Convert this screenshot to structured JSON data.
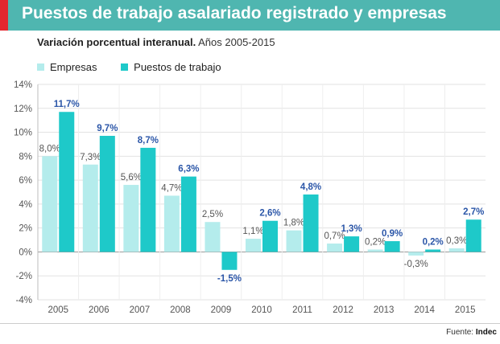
{
  "header": {
    "title": "Puestos de trabajo asalariado registrado y empresas"
  },
  "subtitle": {
    "bold": "Variación porcentual interanual.",
    "normal": "Años 2005-2015"
  },
  "source": {
    "label": "Fuente:",
    "name": "Indec"
  },
  "colors": {
    "title_bar": "#4fb6b0",
    "accent": "#e3262e",
    "empresas": "#b4ecec",
    "puestos": "#1ec9c9",
    "empresas_label": "#555555",
    "puestos_label": "#2b56a8"
  },
  "chart_data": {
    "type": "bar",
    "title": "Puestos de trabajo asalariado registrado y empresas",
    "subtitle": "Variación porcentual interanual. Años 2005-2015",
    "categories": [
      "2005",
      "2006",
      "2007",
      "2008",
      "2009",
      "2010",
      "2011",
      "2012",
      "2013",
      "2014",
      "2015"
    ],
    "series": [
      {
        "name": "Empresas",
        "values": [
          8.0,
          7.3,
          5.6,
          4.7,
          2.5,
          1.1,
          1.8,
          0.7,
          0.2,
          -0.3,
          0.3
        ],
        "labels": [
          "8,0%",
          "7,3%",
          "5,6%",
          "4,7%",
          "2,5%",
          "1,1%",
          "1,8%",
          "0,7%",
          "0,2%",
          "-0,3%",
          "0,3%"
        ]
      },
      {
        "name": "Puestos de trabajo",
        "values": [
          11.7,
          9.7,
          8.7,
          6.3,
          -1.5,
          2.6,
          4.8,
          1.3,
          0.9,
          0.2,
          2.7
        ],
        "labels": [
          "11,7%",
          "9,7%",
          "8,7%",
          "6,3%",
          "-1,5%",
          "2,6%",
          "4,8%",
          "1,3%",
          "0,9%",
          "0,2%",
          "2,7%"
        ]
      }
    ],
    "yticks": [
      14,
      12,
      10,
      8,
      6,
      4,
      2,
      0,
      -2,
      -4
    ],
    "ytick_labels": [
      "14%",
      "12%",
      "10%",
      "8%",
      "6%",
      "4%",
      "2%",
      "0%",
      "-2%",
      "-4%"
    ],
    "ylim": [
      -4,
      14
    ],
    "xlabel": "",
    "ylabel": "",
    "grid": true,
    "legend": "top-left"
  }
}
